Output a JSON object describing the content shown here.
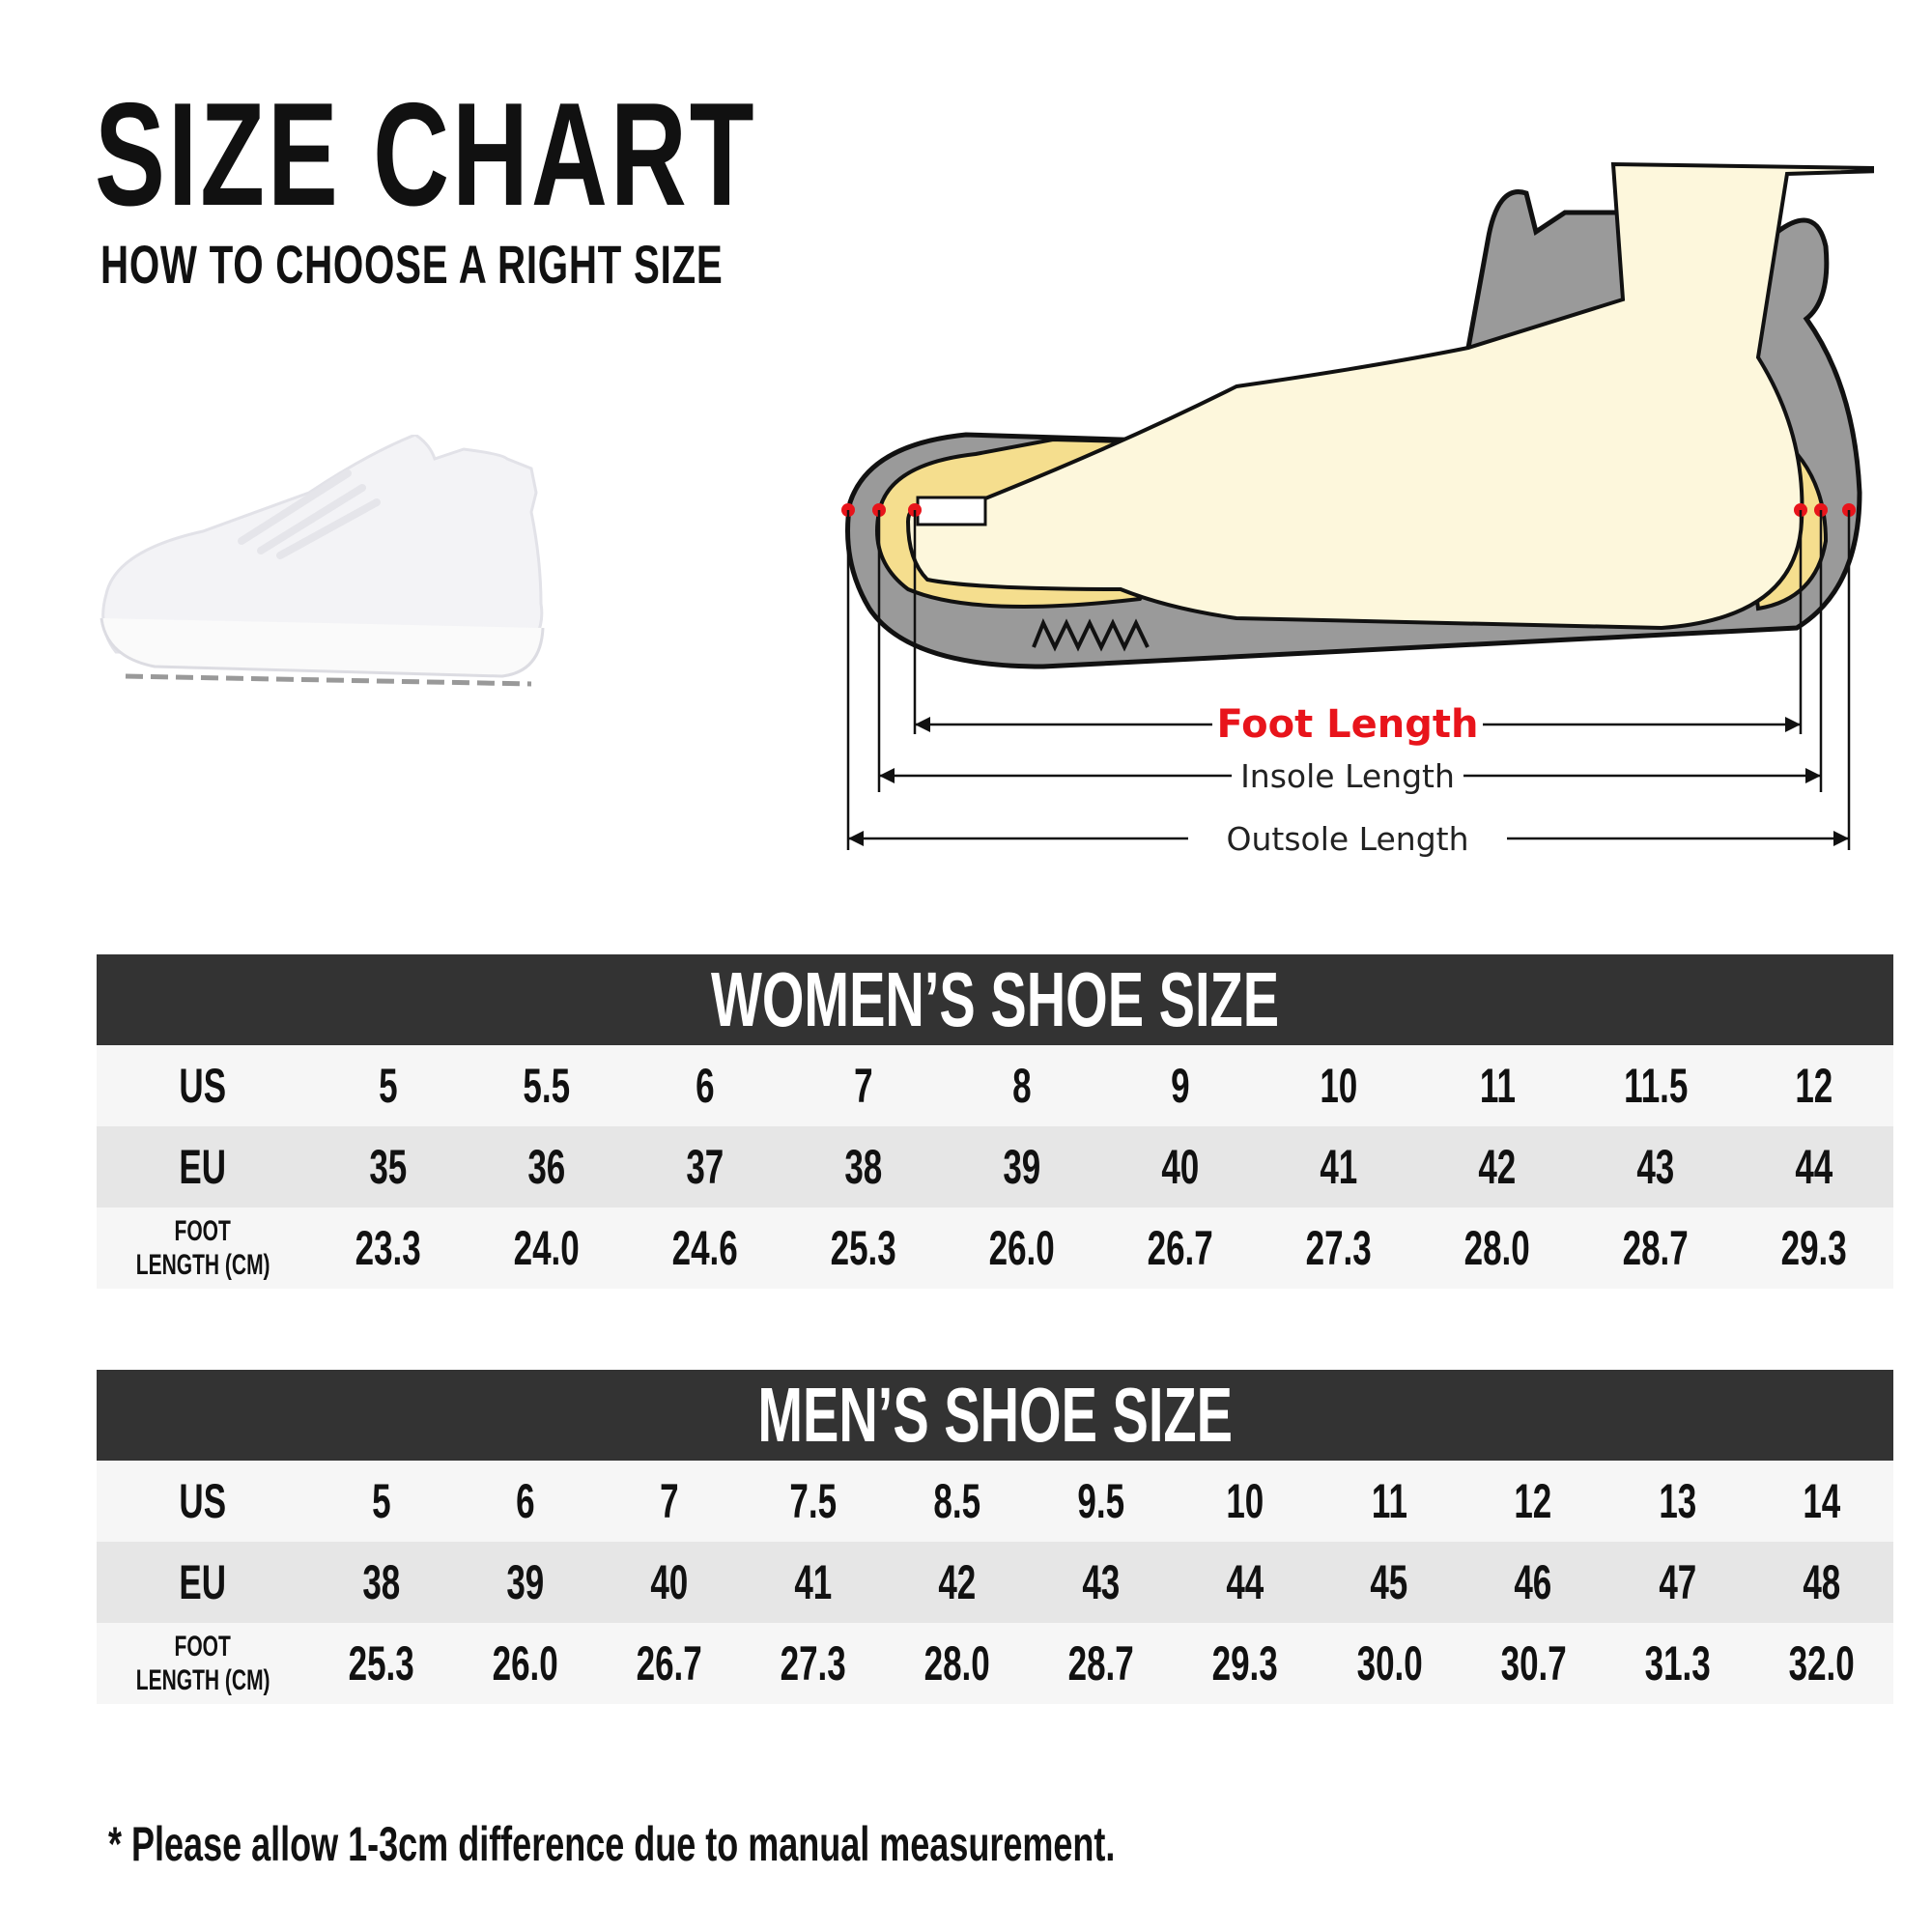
{
  "header": {
    "title": "SIZE CHART",
    "subtitle": "HOW TO CHOOSE A RIGHT SIZE"
  },
  "diagram": {
    "foot_length": "Foot Length",
    "insole_length": "Insole Length",
    "outsole_length": "Outsole Length",
    "colors": {
      "foot_length": "#e8141b",
      "outsole": "#9a9a9a",
      "insole": "#f5de8e",
      "foot": "#fdf7dc",
      "marker": "#e8141b"
    }
  },
  "women": {
    "title": "WOMEN’S SHOE SIZE",
    "labels": {
      "us": "US",
      "eu": "EU",
      "foot1": "FOOT",
      "foot2": "LENGTH (CM)"
    },
    "us": [
      "5",
      "5.5",
      "6",
      "7",
      "8",
      "9",
      "10",
      "11",
      "11.5",
      "12"
    ],
    "eu": [
      "35",
      "36",
      "37",
      "38",
      "39",
      "40",
      "41",
      "42",
      "43",
      "44"
    ],
    "cm": [
      "23.3",
      "24.0",
      "24.6",
      "25.3",
      "26.0",
      "26.7",
      "27.3",
      "28.0",
      "28.7",
      "29.3"
    ]
  },
  "men": {
    "title": "MEN’S SHOE SIZE",
    "labels": {
      "us": "US",
      "eu": "EU",
      "foot1": "FOOT",
      "foot2": "LENGTH (CM)"
    },
    "us": [
      "5",
      "6",
      "7",
      "7.5",
      "8.5",
      "9.5",
      "10",
      "11",
      "12",
      "13",
      "14"
    ],
    "eu": [
      "38",
      "39",
      "40",
      "41",
      "42",
      "43",
      "44",
      "45",
      "46",
      "47",
      "48"
    ],
    "cm": [
      "25.3",
      "26.0",
      "26.7",
      "27.3",
      "28.0",
      "28.7",
      "29.3",
      "30.0",
      "30.7",
      "31.3",
      "32.0"
    ]
  },
  "footnote": "* Please allow 1-3cm difference due to manual measurement."
}
